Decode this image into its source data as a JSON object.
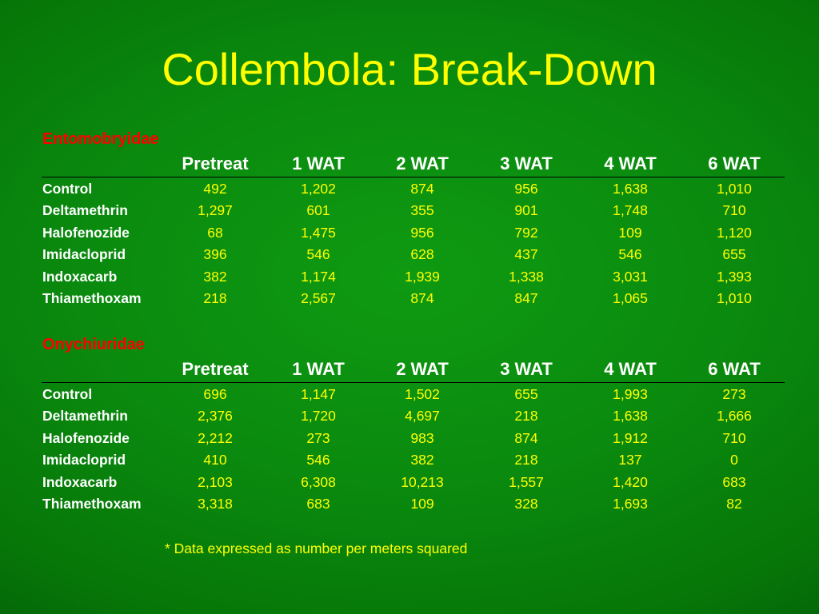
{
  "title": "Collembola: Break-Down",
  "columns": [
    "Pretreat",
    "1  WAT",
    "2  WAT",
    "3  WAT",
    "4  WAT",
    "6  WAT"
  ],
  "sections": [
    {
      "name": "Entomobryidae",
      "rows": [
        {
          "label": "Control",
          "values": [
            "492",
            "1,202",
            "874",
            "956",
            "1,638",
            "1,010"
          ]
        },
        {
          "label": "Deltamethrin",
          "values": [
            "1,297",
            "601",
            "355",
            "901",
            "1,748",
            "710"
          ]
        },
        {
          "label": "Halofenozide",
          "values": [
            "68",
            "1,475",
            "956",
            "792",
            "109",
            "1,120"
          ]
        },
        {
          "label": "Imidacloprid",
          "values": [
            "396",
            "546",
            "628",
            "437",
            "546",
            "655"
          ]
        },
        {
          "label": "Indoxacarb",
          "values": [
            "382",
            "1,174",
            "1,939",
            "1,338",
            "3,031",
            "1,393"
          ]
        },
        {
          "label": "Thiamethoxam",
          "values": [
            "218",
            "2,567",
            "874",
            "847",
            "1,065",
            "1,010"
          ]
        }
      ]
    },
    {
      "name": "Onychiuridae",
      "rows": [
        {
          "label": "Control",
          "values": [
            "696",
            "1,147",
            "1,502",
            "655",
            "1,993",
            "273"
          ]
        },
        {
          "label": "Deltamethrin",
          "values": [
            "2,376",
            "1,720",
            "4,697",
            "218",
            "1,638",
            "1,666"
          ]
        },
        {
          "label": "Halofenozide",
          "values": [
            "2,212",
            "273",
            "983",
            "874",
            "1,912",
            "710"
          ]
        },
        {
          "label": "Imidacloprid",
          "values": [
            "410",
            "546",
            "382",
            "218",
            "137",
            "0"
          ]
        },
        {
          "label": "Indoxacarb",
          "values": [
            "2,103",
            "6,308",
            "10,213",
            "1,557",
            "1,420",
            "683"
          ]
        },
        {
          "label": "Thiamethoxam",
          "values": [
            "3,318",
            "683",
            "109",
            "328",
            "1,693",
            "82"
          ]
        }
      ]
    }
  ],
  "footnote": "* Data expressed as number per meters squared",
  "colors": {
    "title": "#ffff00",
    "section": "#ff0000",
    "header": "#ffffff",
    "values": "#ffff00",
    "background": "#0a8a0e"
  }
}
